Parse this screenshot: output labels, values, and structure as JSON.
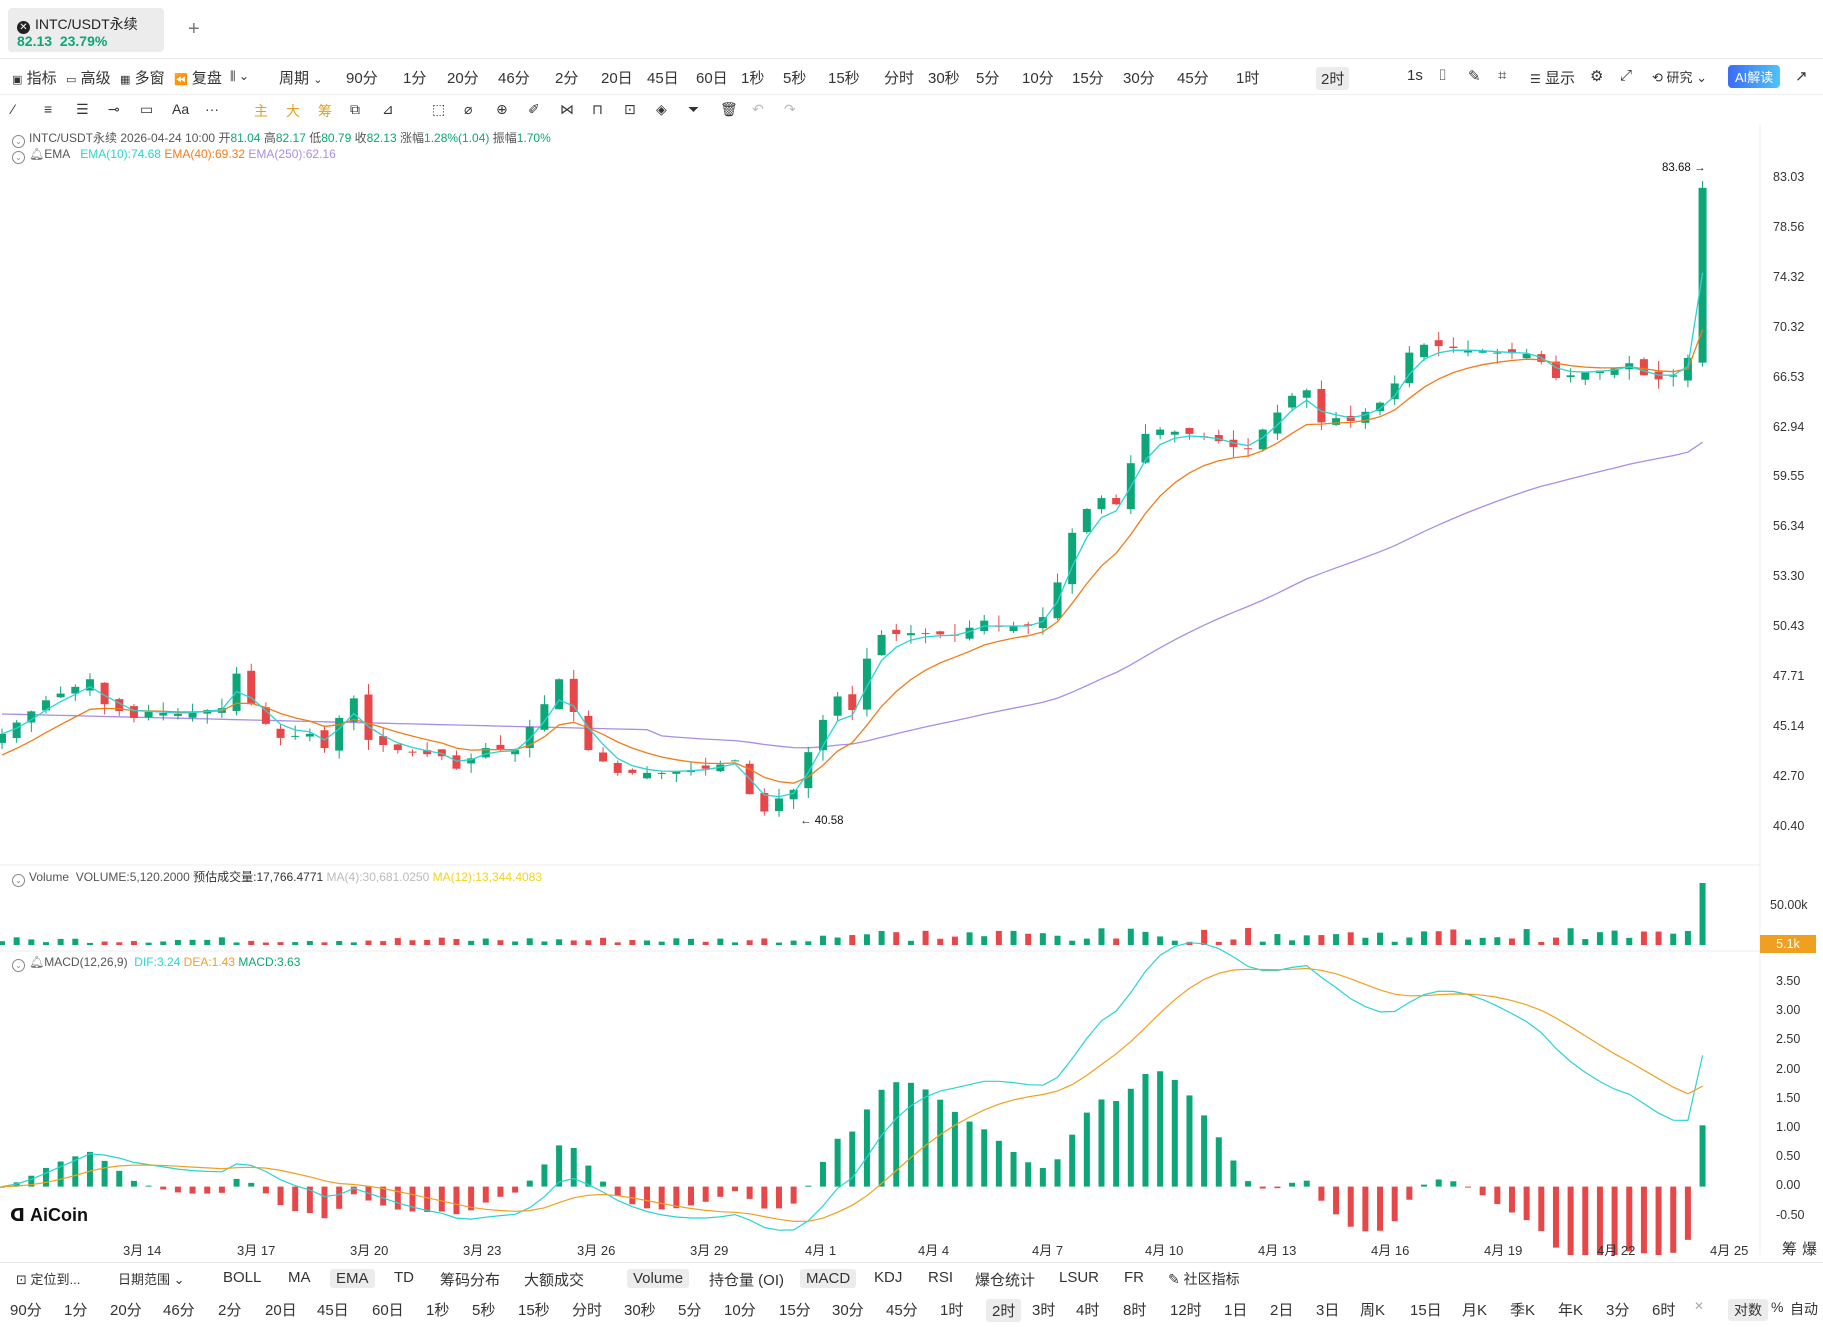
{
  "tab": {
    "symbol": "INTC/USDT永续",
    "price": "82.13",
    "change": "23.79%"
  },
  "toolbar1": {
    "left": [
      "指标",
      "高级",
      "多窗",
      "复盘",
      "周期"
    ],
    "periods": [
      "90分",
      "1分",
      "20分",
      "46分",
      "2分",
      "20日",
      "45日",
      "60日",
      "1秒",
      "5秒",
      "15秒",
      "分时",
      "30秒",
      "5分",
      "10分",
      "15分",
      "30分",
      "45分",
      "1时",
      "2时"
    ],
    "active_period": "2时",
    "right_interval": "1s",
    "display_label": "显示",
    "research_label": "研究",
    "ai_label": "AI解读"
  },
  "toolbar2": {
    "tools": [
      "主",
      "大",
      "筹"
    ]
  },
  "ohlc_legend": {
    "symbol": "INTC/USDT永续",
    "time": "2026-04-24 10:00",
    "open_label": "开",
    "open": "81.04",
    "high_label": "高",
    "high": "82.17",
    "low_label": "低",
    "low": "80.79",
    "close_label": "收",
    "close": "82.13",
    "change_label": "涨幅",
    "change": "1.28%(1.04)",
    "amp_label": "振幅",
    "amp": "1.70%"
  },
  "ema_legend": {
    "name": "EMA",
    "ema10": "EMA(10):74.68",
    "ema40": "EMA(40):69.32",
    "ema250": "EMA(250):62.16"
  },
  "volume_legend": {
    "name": "Volume",
    "volume": "VOLUME:5,120.2000",
    "est": "预估成交量:17,766.4771",
    "ma4": "MA(4):30,681.0250",
    "ma12": "MA(12):13,344.4083"
  },
  "macd_legend": {
    "name": "MACD(12,26,9)",
    "dif": "DIF:3.24",
    "dea": "DEA:1.43",
    "macd": "MACD:3.63"
  },
  "price_axis": [
    "83.03",
    "78.56",
    "74.32",
    "70.32",
    "66.53",
    "62.94",
    "59.55",
    "56.34",
    "53.30",
    "50.43",
    "47.71",
    "45.14",
    "42.70",
    "40.40"
  ],
  "volume_axis": {
    "top": "50.00k",
    "current": "5.1k"
  },
  "macd_axis": [
    "3.50",
    "3.00",
    "2.50",
    "2.00",
    "1.50",
    "1.00",
    "0.50",
    "0.00",
    "-0.50"
  ],
  "x_axis": [
    "3月 14",
    "3月 17",
    "3月 20",
    "3月 23",
    "3月 26",
    "3月 29",
    "4月 1",
    "4月 4",
    "4月 7",
    "4月 10",
    "4月 13",
    "4月 16",
    "4月 19",
    "4月 22",
    "4月 25"
  ],
  "markers": {
    "high": "83.68",
    "low": "40.58"
  },
  "corner_labels": [
    "筹",
    "爆"
  ],
  "logo": "AiCoin",
  "bottom_bar1": {
    "locate": "定位到...",
    "range": "日期范围",
    "indicators": [
      "BOLL",
      "MA",
      "EMA",
      "TD",
      "筹码分布",
      "大额成交"
    ],
    "sub_indicators": [
      "Volume",
      "持仓量 (OI)",
      "MACD",
      "KDJ",
      "RSI",
      "爆仓统计",
      "LSUR",
      "FR"
    ],
    "community": "社区指标",
    "active_main": "EMA",
    "active_sub": [
      "Volume",
      "MACD"
    ]
  },
  "bottom_bar2": {
    "periods": [
      "90分",
      "1分",
      "20分",
      "46分",
      "2分",
      "20日",
      "45日",
      "60日",
      "1秒",
      "5秒",
      "15秒",
      "分时",
      "30秒",
      "5分",
      "10分",
      "15分",
      "30分",
      "45分",
      "1时",
      "2时",
      "3时",
      "4时",
      "8时",
      "12时",
      "1日",
      "2日",
      "3日",
      "周K",
      "15日",
      "月K",
      "季K",
      "年K",
      "3分",
      "6时"
    ],
    "active": "2时",
    "scale_options": [
      "对数",
      "%",
      "自动"
    ]
  },
  "chart_data": {
    "type": "candlestick",
    "price_range": [
      40.4,
      83.7
    ],
    "series": [
      {
        "name": "EMA(10)",
        "color": "#2ad3d3"
      },
      {
        "name": "EMA(40)",
        "color": "#f07d1a"
      },
      {
        "name": "EMA(250)",
        "color": "#a98ee6"
      }
    ],
    "close_path": [
      [
        0,
        44.8
      ],
      [
        3,
        46.5
      ],
      [
        5,
        47.2
      ],
      [
        6,
        47.6
      ],
      [
        7,
        46.3
      ],
      [
        9,
        45.6
      ],
      [
        10,
        45.9
      ],
      [
        12,
        45.8
      ],
      [
        15,
        46.1
      ],
      [
        16,
        47.9
      ],
      [
        17,
        46.3
      ],
      [
        18,
        45.3
      ],
      [
        19,
        44.6
      ],
      [
        21,
        44.8
      ],
      [
        22,
        44.1
      ],
      [
        23,
        45.6
      ],
      [
        24,
        46.6
      ],
      [
        25,
        44.5
      ],
      [
        27,
        44.0
      ],
      [
        30,
        43.7
      ],
      [
        31,
        43.1
      ],
      [
        33,
        44.1
      ],
      [
        35,
        44.0
      ],
      [
        37,
        46.3
      ],
      [
        38,
        47.6
      ],
      [
        39,
        45.9
      ],
      [
        40,
        44.0
      ],
      [
        42,
        42.9
      ],
      [
        45,
        42.9
      ],
      [
        48,
        43.1
      ],
      [
        50,
        43.5
      ],
      [
        51,
        41.9
      ],
      [
        52,
        41.1
      ],
      [
        53,
        41.7
      ],
      [
        54,
        42.1
      ],
      [
        55,
        43.9
      ],
      [
        56,
        45.5
      ],
      [
        57,
        46.7
      ],
      [
        58,
        46.0
      ],
      [
        59,
        48.7
      ],
      [
        60,
        50.0
      ],
      [
        62,
        50.1
      ],
      [
        65,
        50.0
      ],
      [
        66,
        50.4
      ],
      [
        67,
        50.8
      ],
      [
        68,
        50.5
      ],
      [
        70,
        50.5
      ],
      [
        71,
        51.0
      ],
      [
        72,
        53.0
      ],
      [
        73,
        56.0
      ],
      [
        74,
        57.5
      ],
      [
        75,
        58.2
      ],
      [
        76,
        57.8
      ],
      [
        77,
        60.5
      ],
      [
        78,
        62.5
      ],
      [
        79,
        62.8
      ],
      [
        81,
        62.5
      ],
      [
        83,
        62.0
      ],
      [
        84,
        61.6
      ],
      [
        85,
        61.5
      ],
      [
        86,
        62.8
      ],
      [
        87,
        64.0
      ],
      [
        88,
        65.2
      ],
      [
        89,
        65.6
      ],
      [
        90,
        63.3
      ],
      [
        91,
        63.6
      ],
      [
        92,
        63.4
      ],
      [
        94,
        64.7
      ],
      [
        95,
        66.1
      ],
      [
        96,
        68.4
      ],
      [
        97,
        69.0
      ],
      [
        98,
        68.9
      ],
      [
        100,
        68.6
      ],
      [
        102,
        68.4
      ],
      [
        104,
        68.3
      ],
      [
        105,
        67.7
      ],
      [
        106,
        66.5
      ],
      [
        108,
        66.9
      ],
      [
        110,
        67.2
      ],
      [
        111,
        67.6
      ],
      [
        112,
        66.7
      ],
      [
        113,
        66.4
      ],
      [
        114,
        66.7
      ],
      [
        115,
        68.0
      ],
      [
        116,
        82.13
      ]
    ]
  }
}
